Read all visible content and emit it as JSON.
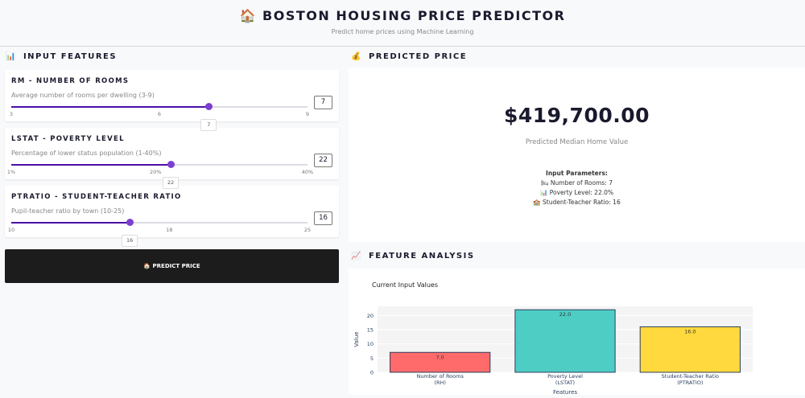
{
  "header": {
    "icon": "house-icon",
    "title": "🏠 BOSTON HOUSING PRICE PREDICTOR",
    "subtitle": "Predict home prices using Machine Learning"
  },
  "input_section": {
    "icon": "📊",
    "title": "INPUT FEATURES"
  },
  "features": [
    {
      "title": "RM - NUMBER OF ROOMS",
      "desc": "Average number of rooms per dwelling (3-9)",
      "min": 3,
      "max": 9,
      "value": "7",
      "ticks": [
        "3",
        "6",
        "9"
      ],
      "tick_values": [
        3,
        6,
        9
      ]
    },
    {
      "title": "LSTAT - POVERTY LEVEL",
      "desc": "Percentage of lower status population (1-40%)",
      "min": 1,
      "max": 40,
      "value": "22",
      "ticks": [
        "1%",
        "20%",
        "40%"
      ],
      "tick_values": [
        1,
        20,
        40
      ]
    },
    {
      "title": "PTRATIO - STUDENT-TEACHER RATIO",
      "desc": "Pupil-teacher ratio by town (10-25)",
      "min": 10,
      "max": 25,
      "value": "16",
      "ticks": [
        "10",
        "18",
        "25"
      ],
      "tick_values": [
        10,
        18,
        25
      ]
    }
  ],
  "predict_button": "🏠 PREDICT PRICE",
  "prediction": {
    "icon": "💰",
    "title": "PREDICTED PRICE",
    "price": "$419,700.00",
    "label": "Predicted Median Home Value",
    "params_title": "Input Parameters:",
    "params": [
      "🛏 Number of Rooms: 7",
      "📊 Poverty Level: 22.0%",
      "🏫 Student-Teacher Ratio: 16"
    ]
  },
  "analysis": {
    "icon": "📈",
    "title": "FEATURE ANALYSIS"
  },
  "chart_data": {
    "type": "bar",
    "title": "Current Input Values",
    "xlabel": "Features",
    "ylabel": "Value",
    "categories": [
      "Number of Rooms (RH)",
      "Poverty Level (LSTAT)",
      "Student-Teacher Ratio (PTRATIO)"
    ],
    "category_lines": [
      [
        "Number of Rooms",
        "(RH)"
      ],
      [
        "Poverty Level",
        "(LSTAT)"
      ],
      [
        "Student-Teacher Ratio",
        "(PTRATIO)"
      ]
    ],
    "values": [
      7,
      22,
      16
    ],
    "labels": [
      "7.0",
      "22.0",
      "16.0"
    ],
    "colors": [
      "#ff6b6b",
      "#4ecdc4",
      "#ffd93d"
    ],
    "ylim": [
      0,
      23.2
    ],
    "yticks": [
      0,
      5,
      10,
      15,
      20
    ],
    "grid": true
  }
}
